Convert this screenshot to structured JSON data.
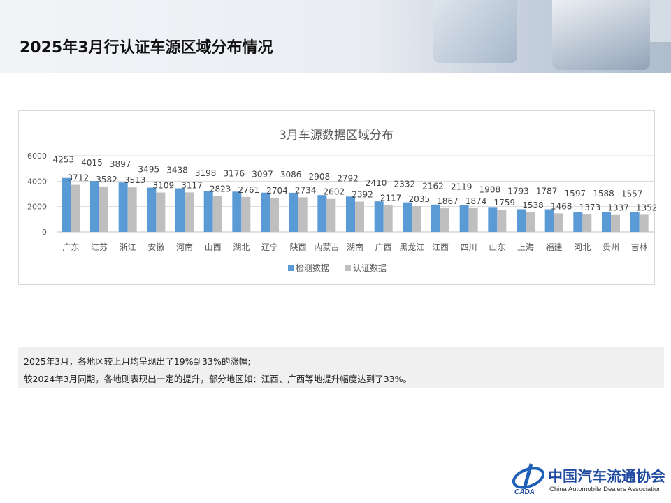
{
  "header": {
    "title": "2025年3月行认证车源区域分布情况"
  },
  "chart_data": {
    "type": "bar",
    "title": "3月车源数据区域分布",
    "categories": [
      "广东",
      "江苏",
      "浙江",
      "安徽",
      "河南",
      "山西",
      "湖北",
      "辽宁",
      "陕西",
      "内蒙古",
      "湖南",
      "广西",
      "黑龙江",
      "江西",
      "四川",
      "山东",
      "上海",
      "福建",
      "河北",
      "贵州",
      "吉林"
    ],
    "series": [
      {
        "name": "检测数据",
        "color": "#5b9bd5",
        "values": [
          4253,
          4015,
          3897,
          3495,
          3438,
          3198,
          3176,
          3097,
          3086,
          2908,
          2792,
          2410,
          2332,
          2162,
          2119,
          1908,
          1793,
          1787,
          1597,
          1588,
          1557
        ]
      },
      {
        "name": "认证数据",
        "color": "#bfbfbf",
        "values": [
          3712,
          3582,
          3513,
          3109,
          3117,
          2823,
          2761,
          2704,
          2734,
          2602,
          2392,
          2117,
          2035,
          1867,
          1874,
          1759,
          1538,
          1468,
          1373,
          1337,
          1352
        ]
      }
    ],
    "yticks": [
      0,
      2000,
      4000,
      6000
    ],
    "ylim": [
      0,
      6000
    ],
    "grid": true,
    "legend": "bottom"
  },
  "note": {
    "line1": "2025年3月，各地区较上月均呈现出了19%到33%的涨幅;",
    "line2": "较2024年3月同期，各地则表现出一定的提升，部分地区如：江西、广西等地提升幅度达到了33%。"
  },
  "logo": {
    "name_cn": "中国汽车流通协会",
    "name_en": "China Automobile Dealers Association",
    "abbr": "CADA"
  }
}
